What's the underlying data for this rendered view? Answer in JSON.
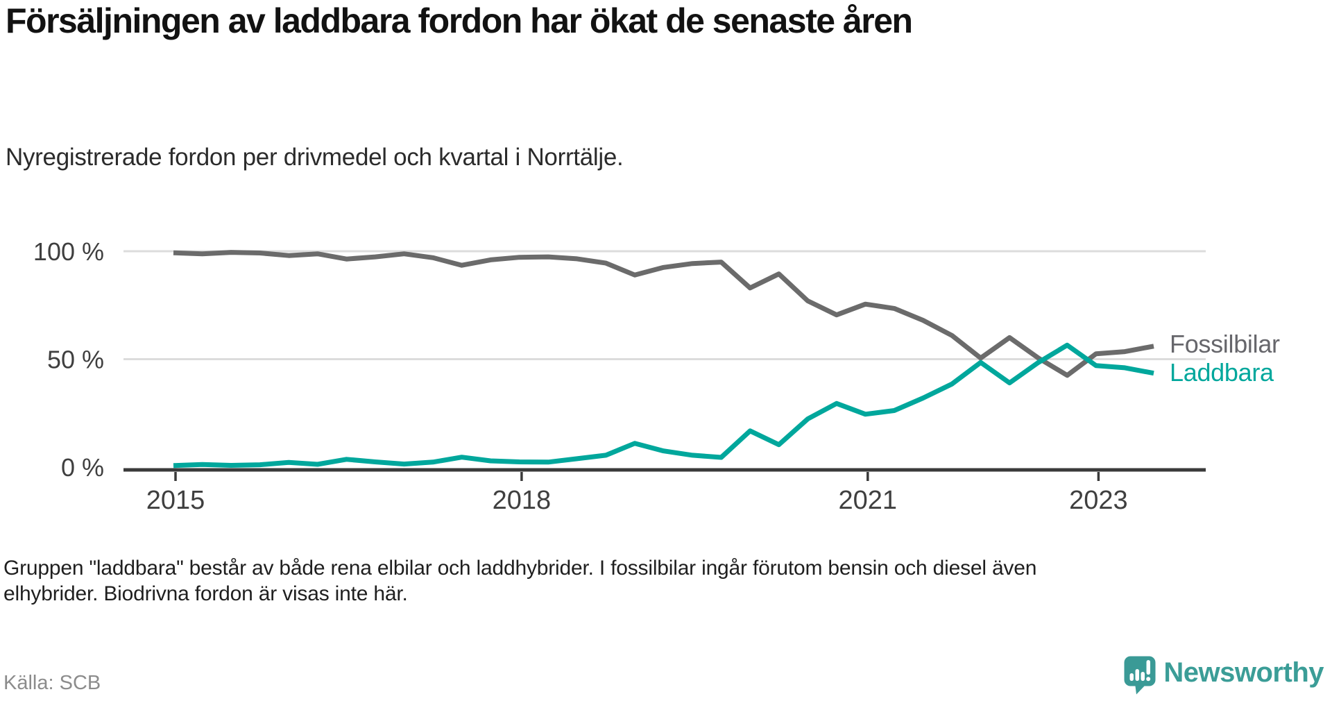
{
  "header": {
    "title": "Försäljningen av laddbara fordon har ökat de senaste åren",
    "subtitle": "Nyregistrerade fordon per drivmedel och kvartal i Norrtälje."
  },
  "chart_data": {
    "type": "line",
    "unit": "percent of newly registered vehicles",
    "grid": "horizontal",
    "ylim": [
      0,
      100
    ],
    "x": [
      "2015 Q1",
      "2015 Q2",
      "2015 Q3",
      "2015 Q4",
      "2016 Q1",
      "2016 Q2",
      "2016 Q3",
      "2016 Q4",
      "2017 Q1",
      "2017 Q2",
      "2017 Q3",
      "2017 Q4",
      "2018 Q1",
      "2018 Q2",
      "2018 Q3",
      "2018 Q4",
      "2019 Q1",
      "2019 Q2",
      "2019 Q3",
      "2019 Q4",
      "2020 Q1",
      "2020 Q2",
      "2020 Q3",
      "2020 Q4",
      "2021 Q1",
      "2021 Q2",
      "2021 Q3",
      "2021 Q4",
      "2022 Q1",
      "2022 Q2",
      "2022 Q3",
      "2022 Q4",
      "2023 Q1",
      "2023 Q2",
      "2023 Q3"
    ],
    "series": [
      {
        "name": "Fossilbilar",
        "color": "#6b6b6b",
        "label_color": "#66666b",
        "values": [
          99.3,
          98.8,
          99.5,
          99.2,
          98.0,
          98.8,
          96.4,
          97.4,
          98.8,
          97.0,
          93.5,
          96.0,
          97.2,
          97.4,
          96.5,
          94.5,
          89.0,
          92.5,
          94.3,
          95.0,
          83.0,
          89.5,
          77.0,
          70.5,
          75.5,
          73.5,
          68.0,
          61.0,
          50.5,
          60.0,
          50.5,
          42.5,
          52.5,
          53.5,
          56.0
        ]
      },
      {
        "name": "Laddbara",
        "color": "#00a79c",
        "label_color": "#00a79c",
        "values": [
          0.7,
          1.2,
          0.8,
          1.1,
          2.2,
          1.3,
          3.6,
          2.4,
          1.4,
          2.3,
          4.6,
          2.9,
          2.4,
          2.3,
          3.9,
          5.5,
          11.0,
          7.5,
          5.5,
          4.5,
          16.8,
          10.4,
          22.3,
          29.5,
          24.5,
          26.2,
          32.0,
          38.5,
          48.5,
          39.0,
          48.5,
          56.5,
          47.0,
          46.0,
          43.5
        ]
      }
    ],
    "y_ticks": [
      {
        "label": "100 %",
        "value": 100
      },
      {
        "label": "50 %",
        "value": 50
      },
      {
        "label": "0 %",
        "value": 0
      }
    ],
    "x_ticks": [
      {
        "label": "2015",
        "year": 2015
      },
      {
        "label": "2018",
        "year": 2018
      },
      {
        "label": "2021",
        "year": 2021
      },
      {
        "label": "2023",
        "year": 2023
      }
    ],
    "legend_position": "right-of-line-ends"
  },
  "notes": {
    "text": "Gruppen \"laddbara\" består av både rena elbilar och laddhybrider. I fossilbilar ingår förutom bensin och diesel även elhybrider. Biodrivna fordon är visas inte här."
  },
  "source": {
    "text": "Källa: SCB"
  },
  "logo": {
    "text": "Newsworthy",
    "icon": "newsworthy-speech-bubble-bar-chart-icon",
    "icon_color": "#3a9a96",
    "text_color": "#3b9d97"
  },
  "style": {
    "grid_color": "#dcdcdc",
    "axis_color": "#3a3a3a",
    "tick_label_color": "#3f3f3f"
  }
}
